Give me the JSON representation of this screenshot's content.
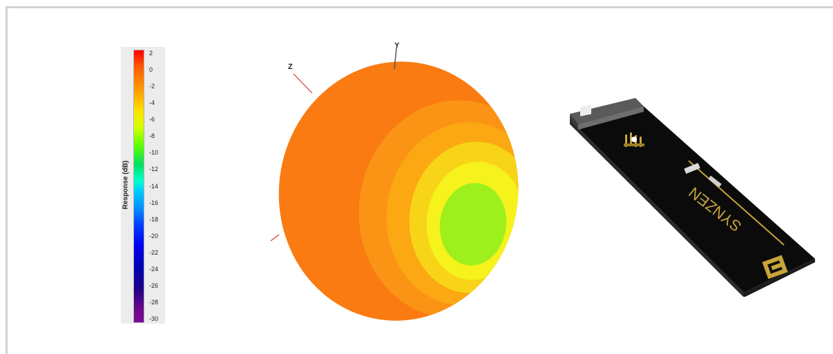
{
  "colorbar": {
    "title": "Response (dB)",
    "ticks": [
      "2",
      "0",
      "-2",
      "-4",
      "-6",
      "-8",
      "-10",
      "-12",
      "-14",
      "-16",
      "-18",
      "-20",
      "-22",
      "-24",
      "-26",
      "-28",
      "-30"
    ],
    "range": [
      -30,
      2
    ]
  },
  "pattern": {
    "axis_y": "Y",
    "axis_z": "Z",
    "colors": {
      "outer": "#f97b12",
      "mid": "#fba812",
      "inner": "#f6f21c",
      "center": "#9ef01c"
    }
  },
  "antenna": {
    "brand": "SYNZEN",
    "colors": {
      "board": "#0b0b0b",
      "gold": "#c8a43a",
      "connector": "#5a5a5a"
    }
  }
}
